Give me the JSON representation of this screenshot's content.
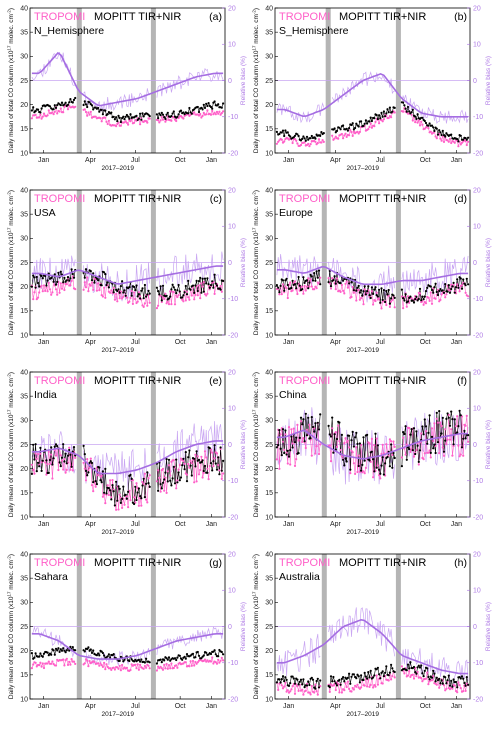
{
  "colors": {
    "tropomi": "#ff5fc8",
    "mopitt": "#000000",
    "bias": "#a56de2",
    "bias_light": "#c9a6f2",
    "gap": "#b5b5b5"
  },
  "axes": {
    "left_ylabel": "Daily mean of total CO column (x10",
    "left_ylabel_exp": "17",
    "left_ylabel_tail": " molec. cm",
    "left_ylabel_tail_exp": "-2",
    "left_ylabel_close": ")",
    "right_ylabel": "Relative bias (%)",
    "xlabel": "2017–2019",
    "xticks": [
      "Jan",
      "Apr",
      "Jul",
      "Oct",
      "Jan"
    ],
    "left_ticks": [
      "10",
      "15",
      "20",
      "25",
      "30",
      "35",
      "40"
    ],
    "right_ticks": [
      "-20",
      "-10",
      "0",
      "10",
      "20"
    ]
  },
  "legend": {
    "tropomi": "TROPOMI",
    "mopitt": "MOPITT TIR+NIR"
  },
  "chart_data": [
    {
      "type": "line",
      "panel": "(a)",
      "region": "N_Hemisphere",
      "ylim": [
        10,
        40
      ],
      "y2lim": [
        -20,
        20
      ],
      "xlim": [
        0,
        1
      ],
      "x": [
        0.05,
        0.15,
        0.25,
        0.35,
        0.45,
        0.55,
        0.65,
        0.75,
        0.85,
        0.95
      ],
      "series": [
        {
          "name": "TROPOMI",
          "values": [
            17.5,
            19,
            19.5,
            17,
            16,
            16.5,
            16.8,
            17.2,
            17.8,
            18.5
          ]
        },
        {
          "name": "MOPITT TIR+NIR",
          "values": [
            19,
            20,
            21,
            19,
            17,
            17.5,
            17.5,
            18,
            19,
            20
          ]
        },
        {
          "name": "Relative bias (%)",
          "axis": "right",
          "values": [
            2,
            8,
            -3,
            -7,
            -6,
            -5,
            -3,
            -1,
            1,
            2
          ]
        }
      ],
      "gaps": [
        0.24,
        0.62
      ]
    },
    {
      "type": "line",
      "panel": "(b)",
      "region": "S_Hemisphere",
      "ylim": [
        10,
        40
      ],
      "y2lim": [
        -20,
        20
      ],
      "xlim": [
        0,
        1
      ],
      "x": [
        0.05,
        0.15,
        0.25,
        0.35,
        0.45,
        0.55,
        0.65,
        0.75,
        0.85,
        0.95
      ],
      "series": [
        {
          "name": "TROPOMI",
          "values": [
            12.5,
            12,
            12.5,
            13.5,
            15,
            17,
            19,
            16,
            13,
            12
          ]
        },
        {
          "name": "MOPITT TIR+NIR",
          "values": [
            14,
            13,
            14,
            15,
            16,
            18,
            20,
            17,
            14,
            13
          ]
        },
        {
          "name": "Relative bias (%)",
          "axis": "right",
          "values": [
            -8,
            -10,
            -8,
            -4,
            0,
            2,
            -5,
            -9,
            -10,
            -10
          ]
        }
      ],
      "gaps": [
        0.26,
        0.62
      ]
    },
    {
      "type": "line",
      "panel": "(c)",
      "region": "USA",
      "ylim": [
        10,
        40
      ],
      "y2lim": [
        -20,
        20
      ],
      "xlim": [
        0,
        1
      ],
      "x": [
        0.05,
        0.15,
        0.25,
        0.35,
        0.45,
        0.55,
        0.65,
        0.75,
        0.85,
        0.95
      ],
      "series": [
        {
          "name": "TROPOMI",
          "values": [
            19,
            20,
            21,
            20,
            18,
            17.5,
            17,
            18,
            19,
            20
          ]
        },
        {
          "name": "MOPITT TIR+NIR",
          "values": [
            21,
            22,
            23,
            22,
            20,
            19,
            18.5,
            19,
            20,
            21
          ]
        },
        {
          "name": "Relative bias (%)",
          "axis": "right",
          "values": [
            -3,
            -4,
            -2,
            -4,
            -6,
            -5,
            -4,
            -3,
            -2,
            -1
          ]
        }
      ],
      "gaps": [
        0.24,
        0.62
      ]
    },
    {
      "type": "line",
      "panel": "(d)",
      "region": "Europe",
      "ylim": [
        10,
        40
      ],
      "y2lim": [
        -20,
        20
      ],
      "xlim": [
        0,
        1
      ],
      "x": [
        0.05,
        0.15,
        0.25,
        0.35,
        0.45,
        0.55,
        0.65,
        0.75,
        0.85,
        0.95
      ],
      "series": [
        {
          "name": "TROPOMI",
          "values": [
            19,
            20,
            21,
            20,
            18,
            17,
            17,
            17.5,
            18.5,
            19.5
          ]
        },
        {
          "name": "MOPITT TIR+NIR",
          "values": [
            20,
            21,
            22,
            21,
            19,
            18,
            18,
            18.5,
            19.5,
            20.5
          ]
        },
        {
          "name": "Relative bias (%)",
          "axis": "right",
          "values": [
            -2,
            -3,
            -1,
            -4,
            -6,
            -6,
            -5,
            -5,
            -4,
            -3
          ]
        }
      ],
      "gaps": [
        0.24,
        0.62
      ]
    },
    {
      "type": "line",
      "panel": "(e)",
      "region": "India",
      "ylim": [
        10,
        40
      ],
      "y2lim": [
        -20,
        20
      ],
      "xlim": [
        0,
        1
      ],
      "x": [
        0.05,
        0.15,
        0.25,
        0.35,
        0.45,
        0.55,
        0.65,
        0.75,
        0.85,
        0.95
      ],
      "series": [
        {
          "name": "TROPOMI",
          "values": [
            21,
            21,
            22,
            17,
            14,
            15,
            17,
            19,
            20,
            21
          ]
        },
        {
          "name": "MOPITT TIR+NIR",
          "values": [
            22,
            22,
            23,
            18,
            15,
            16,
            18,
            20,
            21,
            22
          ]
        },
        {
          "name": "Relative bias (%)",
          "axis": "right",
          "values": [
            -2,
            -1,
            -3,
            -8,
            -8,
            -7,
            -5,
            -2,
            0,
            1
          ]
        }
      ],
      "gaps": [
        0.24,
        0.62
      ]
    },
    {
      "type": "line",
      "panel": "(f)",
      "region": "China",
      "ylim": [
        10,
        40
      ],
      "y2lim": [
        -20,
        20
      ],
      "xlim": [
        0,
        1
      ],
      "x": [
        0.05,
        0.15,
        0.25,
        0.35,
        0.45,
        0.55,
        0.65,
        0.75,
        0.85,
        0.95
      ],
      "series": [
        {
          "name": "TROPOMI",
          "values": [
            24,
            26,
            27,
            24,
            22,
            22,
            24,
            25,
            27,
            27
          ]
        },
        {
          "name": "MOPITT TIR+NIR",
          "values": [
            25,
            27,
            28,
            25,
            23,
            23,
            25,
            26,
            28,
            28
          ]
        },
        {
          "name": "Relative bias (%)",
          "axis": "right",
          "values": [
            2,
            4,
            0,
            -3,
            -4,
            -3,
            -1,
            1,
            2,
            3
          ]
        }
      ],
      "gaps": [
        0.24,
        0.62
      ]
    },
    {
      "type": "line",
      "panel": "(g)",
      "region": "Sahara",
      "ylim": [
        10,
        40
      ],
      "y2lim": [
        -20,
        20
      ],
      "xlim": [
        0,
        1
      ],
      "x": [
        0.05,
        0.15,
        0.25,
        0.35,
        0.45,
        0.55,
        0.65,
        0.75,
        0.85,
        0.95
      ],
      "series": [
        {
          "name": "TROPOMI",
          "values": [
            17,
            17.5,
            18,
            17,
            16.5,
            16.5,
            16.5,
            17,
            17.5,
            18
          ]
        },
        {
          "name": "MOPITT TIR+NIR",
          "values": [
            19,
            20,
            20.5,
            19.5,
            18.5,
            18,
            18,
            18.5,
            19,
            19.5
          ]
        },
        {
          "name": "Relative bias (%)",
          "axis": "right",
          "values": [
            -2,
            -4,
            -8,
            -9,
            -9,
            -8,
            -6,
            -4,
            -3,
            -2
          ]
        }
      ],
      "gaps": [
        0.24,
        0.62
      ]
    },
    {
      "type": "line",
      "panel": "(h)",
      "region": "Australia",
      "ylim": [
        10,
        40
      ],
      "y2lim": [
        -20,
        20
      ],
      "xlim": [
        0,
        1
      ],
      "x": [
        0.05,
        0.15,
        0.25,
        0.35,
        0.45,
        0.55,
        0.65,
        0.75,
        0.85,
        0.95
      ],
      "series": [
        {
          "name": "TROPOMI",
          "values": [
            12.5,
            12,
            12,
            12.5,
            13,
            14,
            16,
            15,
            13,
            12.5
          ]
        },
        {
          "name": "MOPITT TIR+NIR",
          "values": [
            14,
            13,
            13.5,
            14,
            14.5,
            15.5,
            17,
            16,
            14,
            13.5
          ]
        },
        {
          "name": "Relative bias (%)",
          "axis": "right",
          "values": [
            -10,
            -8,
            -5,
            0,
            2,
            -2,
            -8,
            -10,
            -12,
            -13
          ]
        }
      ],
      "gaps": [
        0.24,
        0.62
      ]
    }
  ]
}
